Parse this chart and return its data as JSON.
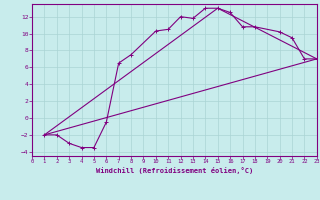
{
  "background_color": "#c8ecec",
  "grid_color": "#aad4d4",
  "line_color": "#800080",
  "xlabel": "Windchill (Refroidissement éolien,°C)",
  "xlim": [
    0,
    23
  ],
  "ylim": [
    -4.5,
    13.5
  ],
  "xticks": [
    0,
    1,
    2,
    3,
    4,
    5,
    6,
    7,
    8,
    9,
    10,
    11,
    12,
    13,
    14,
    15,
    16,
    17,
    18,
    19,
    20,
    21,
    22,
    23
  ],
  "yticks": [
    -4,
    -2,
    0,
    2,
    4,
    6,
    8,
    10,
    12
  ],
  "curve1_x": [
    1,
    2,
    3,
    4,
    5,
    6,
    7,
    8,
    10,
    11,
    12,
    13,
    14,
    15,
    16,
    17,
    18,
    20,
    21,
    22,
    23
  ],
  "curve1_y": [
    -2,
    -2,
    -3,
    -3.5,
    -3.5,
    -0.5,
    6.5,
    7.5,
    10.3,
    10.5,
    12.0,
    11.8,
    13.0,
    13.0,
    12.5,
    10.8,
    10.8,
    10.2,
    9.5,
    7.0,
    7.0
  ],
  "curve2_x": [
    1,
    23
  ],
  "curve2_y": [
    -2,
    7.0
  ],
  "curve3_x": [
    1,
    15,
    23
  ],
  "curve3_y": [
    -2,
    13.0,
    7.0
  ],
  "figwidth": 3.2,
  "figheight": 2.0,
  "dpi": 100
}
